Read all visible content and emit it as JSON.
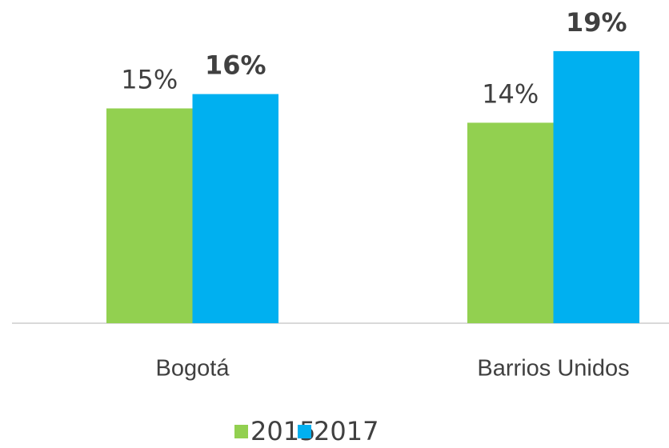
{
  "chart_data": {
    "type": "bar",
    "categories": [
      "Bogotá",
      "Barrios Unidos"
    ],
    "series": [
      {
        "name": "2015",
        "color": "#92d050",
        "values": [
          15,
          14
        ],
        "value_labels": [
          "15%",
          "14%"
        ]
      },
      {
        "name": "2017",
        "color": "#00b0f0",
        "values": [
          16,
          19
        ],
        "value_labels": [
          "16%",
          "19%"
        ]
      }
    ],
    "ylim": [
      0,
      20
    ],
    "grid": false,
    "legend": "bottom"
  }
}
